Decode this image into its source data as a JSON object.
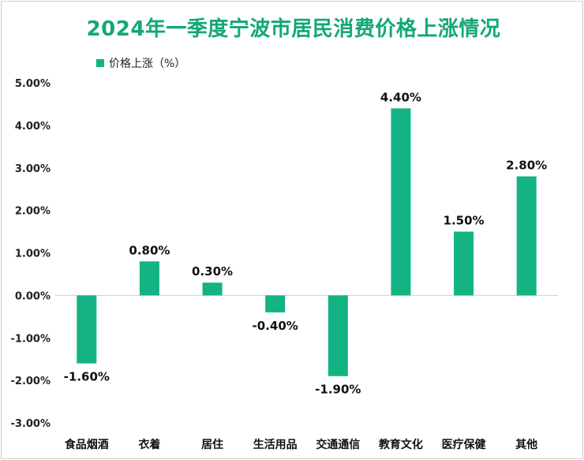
{
  "chart_data": {
    "type": "bar",
    "title": "2024年一季度宁波市居民消费价格上涨情况",
    "legend": "价格上涨（%）",
    "legend_position": "top-left",
    "color": "#13b383",
    "categories": [
      "食品烟酒",
      "衣着",
      "居住",
      "生活用品",
      "交通通信",
      "教育文化",
      "医疗保健",
      "其他"
    ],
    "values": [
      -1.6,
      0.8,
      0.3,
      -0.4,
      -1.9,
      4.4,
      1.5,
      2.8
    ],
    "data_labels": [
      "-1.60%",
      "0.80%",
      "0.30%",
      "-0.40%",
      "-1.90%",
      "4.40%",
      "1.50%",
      "2.80%"
    ],
    "y_ticks": [
      5,
      4,
      3,
      2,
      1,
      0,
      -1,
      -2,
      -3
    ],
    "y_tick_labels": [
      "5.00%",
      "4.00%",
      "3.00%",
      "2.00%",
      "1.00%",
      "0.00%",
      "-1.00%",
      "-2.00%",
      "-3.00%"
    ],
    "ylim": [
      -3,
      5
    ],
    "grid": false
  }
}
